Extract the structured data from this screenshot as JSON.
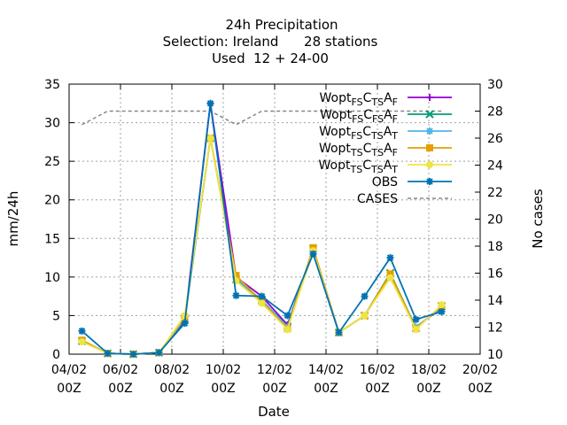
{
  "chart_data": {
    "type": "line",
    "title_lines": [
      "24h Precipitation",
      "Selection: Ireland      28 stations",
      "Used  12 + 24-00"
    ],
    "xlabel": "Date",
    "ylabel": "mm/24h",
    "y2label": "No cases",
    "xlim": [
      0,
      16
    ],
    "ylim": [
      0,
      35
    ],
    "y2lim": [
      10,
      30
    ],
    "xticks": [
      {
        "v": 0,
        "l1": "04/02",
        "l2": "00Z"
      },
      {
        "v": 2,
        "l1": "06/02",
        "l2": "00Z"
      },
      {
        "v": 4,
        "l1": "08/02",
        "l2": "00Z"
      },
      {
        "v": 6,
        "l1": "10/02",
        "l2": "00Z"
      },
      {
        "v": 8,
        "l1": "12/02",
        "l2": "00Z"
      },
      {
        "v": 10,
        "l1": "14/02",
        "l2": "00Z"
      },
      {
        "v": 12,
        "l1": "16/02",
        "l2": "00Z"
      },
      {
        "v": 14,
        "l1": "18/02",
        "l2": "00Z"
      },
      {
        "v": 16,
        "l1": "20/02",
        "l2": "00Z"
      }
    ],
    "yticks": [
      "0",
      "5",
      "10",
      "15",
      "20",
      "25",
      "30",
      "35"
    ],
    "y2ticks": [
      "10",
      "12",
      "14",
      "16",
      "18",
      "20",
      "22",
      "24",
      "26",
      "28",
      "30"
    ],
    "grid": true,
    "legend_position": "top-right",
    "x": [
      0.5,
      1.5,
      2.5,
      3.5,
      4.5,
      5.5,
      6.5,
      7.5,
      8.5,
      9.5,
      10.5,
      11.5,
      12.5,
      13.5,
      14.5
    ],
    "series": [
      {
        "name_base": "Wopt",
        "sub1": "FS",
        "mid": "C",
        "sub2": "TS",
        "tail": "A",
        "sub3": "F",
        "color": "#9400d3",
        "marker": "plus",
        "values": [
          1.8,
          0.1,
          0,
          0.2,
          4.3,
          32.5,
          10.0,
          7.5,
          3.8,
          13.5,
          2.8,
          5.0,
          10.0,
          3.5,
          6.0
        ]
      },
      {
        "name_base": "Wopt",
        "sub1": "FS",
        "mid": "C",
        "sub2": "FS",
        "tail": "A",
        "sub3": "F",
        "color": "#009e73",
        "marker": "x",
        "values": [
          1.7,
          0.1,
          0,
          0.2,
          4.5,
          28.0,
          9.7,
          7.0,
          3.6,
          13.7,
          2.8,
          5.0,
          10.5,
          3.4,
          6.2
        ]
      },
      {
        "name_base": "Wopt",
        "sub1": "FS",
        "mid": "C",
        "sub2": "TS",
        "tail": "A",
        "sub3": "T",
        "color": "#56b4e9",
        "marker": "star",
        "values": [
          1.7,
          0.1,
          0,
          0.2,
          4.6,
          28.0,
          9.8,
          7.0,
          3.5,
          13.6,
          2.8,
          5.0,
          10.2,
          3.5,
          6.1
        ]
      },
      {
        "name_base": "Wopt",
        "sub1": "TS",
        "mid": "C",
        "sub2": "TS",
        "tail": "A",
        "sub3": "F",
        "color": "#e69f00",
        "marker": "square",
        "values": [
          1.8,
          0.1,
          0,
          0.2,
          4.8,
          28.0,
          10.2,
          6.8,
          3.3,
          13.8,
          2.8,
          5.0,
          10.4,
          3.3,
          6.3
        ]
      },
      {
        "name_base": "Wopt",
        "sub1": "TS",
        "mid": "C",
        "sub2": "TS",
        "tail": "A",
        "sub3": "T",
        "color": "#f0e442",
        "marker": "circle",
        "values": [
          1.6,
          0.1,
          0,
          0.2,
          5.0,
          28.0,
          9.5,
          6.6,
          3.2,
          13.4,
          2.8,
          5.0,
          9.9,
          3.2,
          6.4
        ]
      },
      {
        "name": "OBS",
        "color": "#0072b2",
        "marker": "star",
        "values": [
          3.0,
          0.1,
          0,
          0.2,
          4.0,
          32.5,
          7.6,
          7.5,
          5.0,
          13.0,
          2.8,
          7.5,
          12.5,
          4.5,
          5.5
        ]
      }
    ],
    "cases": {
      "name": "CASES",
      "color": "#888888",
      "axis": "y2",
      "values": [
        27,
        28,
        28,
        28,
        28,
        28,
        27,
        28,
        28,
        28,
        28,
        28,
        28,
        28,
        28
      ]
    }
  }
}
